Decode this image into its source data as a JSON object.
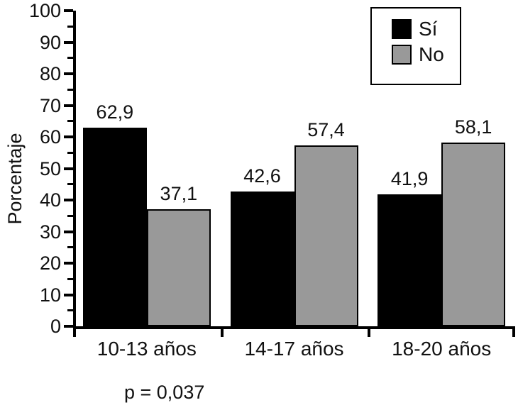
{
  "chart_data": {
    "type": "bar",
    "title": "",
    "xlabel": "",
    "ylabel": "Porcentaje",
    "ylim": [
      0,
      100
    ],
    "y_major_ticks": [
      0,
      10,
      20,
      30,
      40,
      50,
      60,
      70,
      80,
      90,
      100
    ],
    "y_minor_tick_step": 5,
    "grid": false,
    "legend_position": "top-right",
    "categories": [
      "10-13 años",
      "14-17 años",
      "18-20 años"
    ],
    "series": [
      {
        "name": "Sí",
        "color": "#000000",
        "values": [
          62.9,
          42.6,
          41.9
        ]
      },
      {
        "name": "No",
        "color": "#999999",
        "values": [
          37.1,
          57.4,
          58.1
        ]
      }
    ],
    "value_labels": [
      [
        "62,9",
        "42,6",
        "41,9"
      ],
      [
        "37,1",
        "57,4",
        "58,1"
      ]
    ],
    "annotation": "p = 0,037",
    "axis_color": "#000000"
  }
}
